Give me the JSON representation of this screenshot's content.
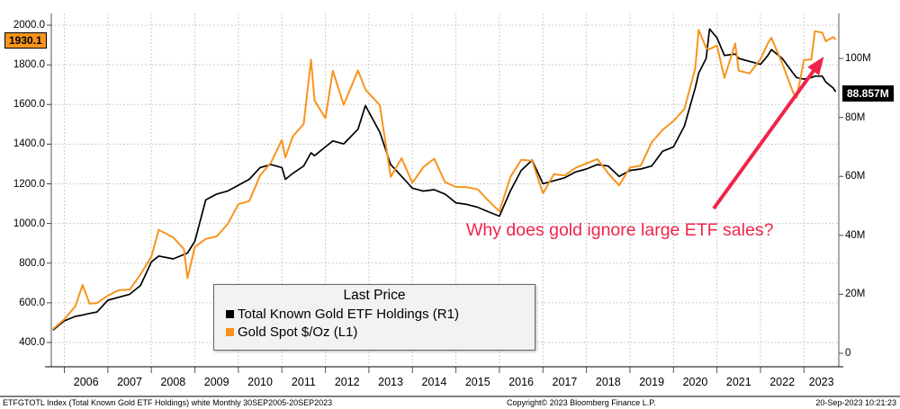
{
  "chart_data": {
    "type": "line",
    "legend": {
      "title": "Last Price",
      "entries": [
        {
          "label": "Total Known Gold ETF Holdings  (R1)",
          "color": "#000000"
        },
        {
          "label": "Gold Spot $/Oz  (L1)",
          "color": "#f7941e"
        }
      ]
    },
    "annotation": "Why does gold ignore large ETF sales?",
    "annotation_color": "#f0244a",
    "left_axis": {
      "ticks": [
        "2000.0",
        "1800.0",
        "1600.0",
        "1400.0",
        "1200.0",
        "1000.0",
        "800.0",
        "600.0",
        "400.0"
      ],
      "range": [
        400,
        2000
      ],
      "last_price_label": "1930.1"
    },
    "right_axis": {
      "ticks": [
        "100M",
        "80M",
        "60M",
        "40M",
        "20M",
        "0"
      ],
      "range": [
        0,
        100
      ],
      "last_price_label": "88.857M"
    },
    "x_axis": {
      "year_labels": [
        "2006",
        "2007",
        "2008",
        "2009",
        "2010",
        "2011",
        "2012",
        "2013",
        "2014",
        "2015",
        "2016",
        "2017",
        "2018",
        "2019",
        "2020",
        "2021",
        "2022",
        "2023"
      ],
      "range": [
        2005.7,
        2023.8
      ]
    },
    "x": [
      2005.75,
      2006,
      2006.25,
      2006.42,
      2006.58,
      2006.75,
      2007,
      2007.25,
      2007.5,
      2007.75,
      2008,
      2008.17,
      2008.5,
      2008.75,
      2008.83,
      2009,
      2009.25,
      2009.5,
      2009.75,
      2010,
      2010.25,
      2010.5,
      2010.75,
      2011,
      2011.08,
      2011.25,
      2011.5,
      2011.67,
      2011.75,
      2012,
      2012.17,
      2012.42,
      2012.75,
      2012.92,
      2013.25,
      2013.5,
      2013.75,
      2014,
      2014.25,
      2014.5,
      2014.75,
      2015,
      2015.25,
      2015.5,
      2015.75,
      2016,
      2016.25,
      2016.5,
      2016.75,
      2017,
      2017.25,
      2017.5,
      2017.75,
      2018,
      2018.25,
      2018.5,
      2018.75,
      2019,
      2019.25,
      2019.5,
      2019.75,
      2020,
      2020.25,
      2020.5,
      2020.58,
      2020.75,
      2020.83,
      2021,
      2021.17,
      2021.42,
      2021.5,
      2021.75,
      2022,
      2022.17,
      2022.25,
      2022.5,
      2022.75,
      2022.83,
      2023,
      2023.17,
      2023.25,
      2023.42,
      2023.5,
      2023.67,
      2023.72
    ],
    "series": [
      {
        "name": "Total Known Gold ETF Holdings",
        "axis": "R1",
        "color": "#000000",
        "unit": "Moz",
        "values": [
          8,
          11,
          12.5,
          13,
          13.5,
          14,
          18,
          19,
          20,
          23,
          31,
          33,
          32,
          33.5,
          34,
          38,
          52,
          54,
          55,
          57,
          59,
          63,
          64,
          63,
          59,
          61,
          63.5,
          68,
          67,
          70,
          72,
          71,
          76,
          84,
          75,
          64,
          60,
          56,
          55,
          55.5,
          54,
          51,
          50.5,
          49.5,
          48,
          46.5,
          55,
          62,
          65.5,
          57.5,
          58.5,
          59.5,
          61.5,
          62.5,
          64,
          63.5,
          60,
          62,
          62.5,
          63.5,
          68.5,
          70,
          77,
          90,
          95,
          100,
          110,
          107,
          101,
          101.5,
          100,
          99,
          98,
          101,
          103,
          100,
          95,
          93.5,
          93,
          93.5,
          94,
          94,
          92,
          90,
          88.857
        ]
      },
      {
        "name": "Gold Spot $/Oz",
        "axis": "L1",
        "color": "#f7941e",
        "unit": "USD/oz",
        "values": [
          470,
          517,
          582,
          690,
          596,
          599,
          636,
          664,
          666,
          743,
          833,
          968,
          930,
          871,
          724,
          882,
          922,
          935,
          996,
          1097,
          1113,
          1242,
          1307,
          1421,
          1333,
          1439,
          1502,
          1826,
          1620,
          1531,
          1770,
          1598,
          1772,
          1675,
          1597,
          1235,
          1329,
          1205,
          1284,
          1327,
          1208,
          1184,
          1183,
          1172,
          1115,
          1061,
          1233,
          1321,
          1316,
          1152,
          1249,
          1242,
          1280,
          1303,
          1325,
          1253,
          1192,
          1282,
          1292,
          1409,
          1472,
          1517,
          1577,
          1781,
          1976,
          1886,
          1879,
          1898,
          1734,
          1907,
          1770,
          1757,
          1829,
          1909,
          1937,
          1807,
          1661,
          1634,
          1824,
          1827,
          1969,
          1963,
          1919,
          1940,
          1930.1
        ]
      }
    ]
  },
  "status_bar": {
    "left": "ETFGTOTL Index (Total Known Gold ETF Holdings) white  Monthly 30SEP2005-20SEP2023",
    "center": "Copyright© 2023 Bloomberg Finance L.P.",
    "right": "20-Sep-2023 10:21:23"
  }
}
